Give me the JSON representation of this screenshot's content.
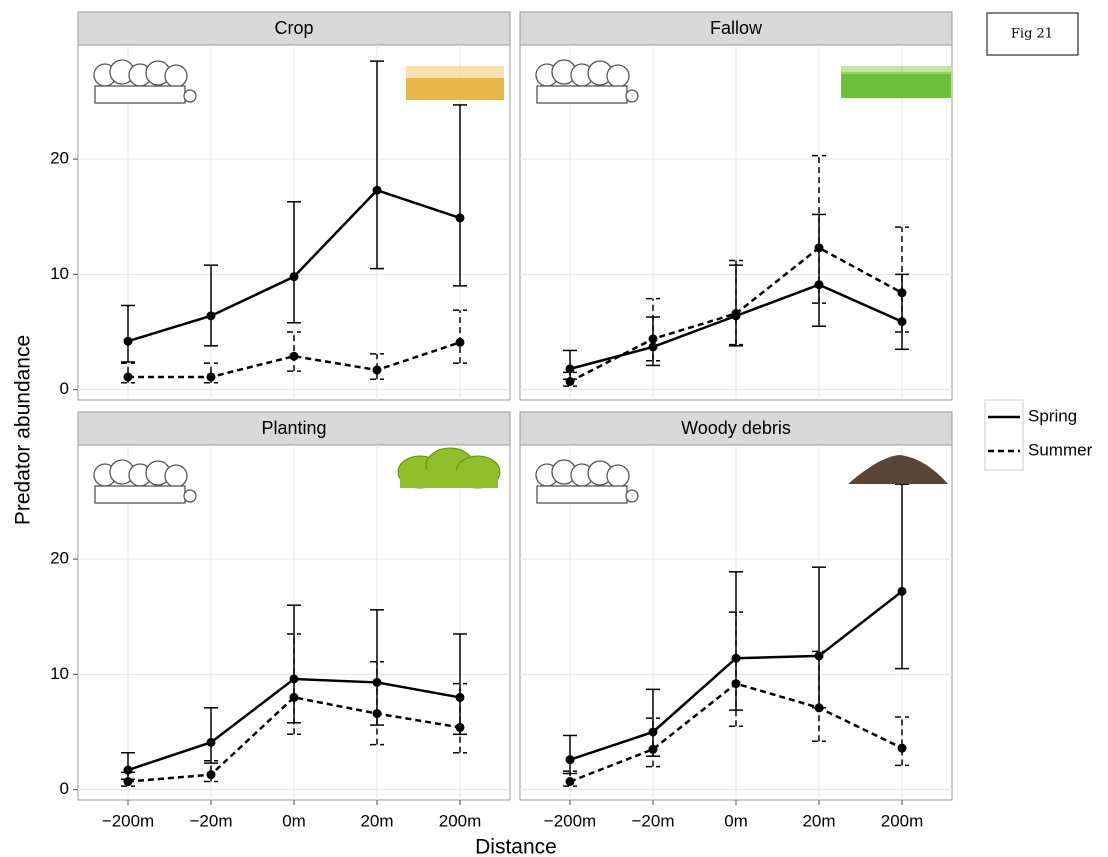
{
  "figure_label": "Fig 21",
  "chart_data": {
    "type": "line",
    "xlabel": "Distance",
    "ylabel": "Predator abundance",
    "categories": [
      "−200m",
      "−20m",
      "0m",
      "20m",
      "200m"
    ],
    "ylim": [
      -0.9,
      29.9
    ],
    "yticks": [
      0,
      10,
      20
    ],
    "grid": true,
    "color": "#000000",
    "legend": {
      "position": "right",
      "series": [
        {
          "name": "Spring",
          "line_style": "solid"
        },
        {
          "name": "Summer",
          "line_style": "dashed"
        }
      ]
    },
    "facets": [
      {
        "title": "Crop",
        "series": [
          {
            "values": [
              4.2,
              6.4,
              9.8,
              17.3,
              14.9
            ],
            "lower": [
              2.4,
              3.8,
              5.8,
              10.5,
              9.0
            ],
            "upper": [
              7.3,
              10.8,
              16.3,
              28.5,
              24.7
            ]
          },
          {
            "values": [
              1.1,
              1.1,
              2.9,
              1.7,
              4.1
            ],
            "lower": [
              0.6,
              0.6,
              1.6,
              0.9,
              2.3
            ],
            "upper": [
              2.3,
              2.3,
              5.0,
              3.1,
              6.9
            ]
          }
        ]
      },
      {
        "title": "Fallow",
        "series": [
          {
            "values": [
              1.8,
              3.7,
              6.4,
              9.1,
              5.9
            ],
            "lower": [
              0.9,
              2.1,
              3.8,
              5.5,
              3.5
            ],
            "upper": [
              3.4,
              6.3,
              10.8,
              15.2,
              10.0
            ]
          },
          {
            "values": [
              0.7,
              4.4,
              6.6,
              12.3,
              8.4
            ],
            "lower": [
              0.3,
              2.5,
              3.9,
              7.5,
              5.0
            ],
            "upper": [
              1.5,
              7.9,
              11.2,
              20.3,
              14.1
            ]
          }
        ]
      },
      {
        "title": "Planting",
        "series": [
          {
            "values": [
              1.7,
              4.1,
              9.6,
              9.3,
              8.0
            ],
            "lower": [
              0.9,
              2.3,
              5.8,
              5.6,
              4.8
            ],
            "upper": [
              3.2,
              7.1,
              16.0,
              15.6,
              13.5
            ]
          },
          {
            "values": [
              0.7,
              1.3,
              8.0,
              6.6,
              5.4
            ],
            "lower": [
              0.3,
              0.7,
              4.8,
              3.9,
              3.2
            ],
            "upper": [
              1.5,
              2.5,
              13.5,
              11.1,
              9.2
            ]
          }
        ]
      },
      {
        "title": "Woody debris",
        "series": [
          {
            "values": [
              2.6,
              5.0,
              11.4,
              11.6,
              17.2
            ],
            "lower": [
              1.4,
              2.9,
              6.9,
              7.1,
              10.5
            ],
            "upper": [
              4.7,
              8.7,
              18.9,
              19.3,
              26.5
            ]
          },
          {
            "values": [
              0.7,
              3.5,
              9.2,
              7.1,
              3.6
            ],
            "lower": [
              0.3,
              2.0,
              5.5,
              4.2,
              2.1
            ],
            "upper": [
              1.6,
              6.2,
              15.4,
              12.0,
              6.3
            ]
          }
        ]
      }
    ]
  }
}
